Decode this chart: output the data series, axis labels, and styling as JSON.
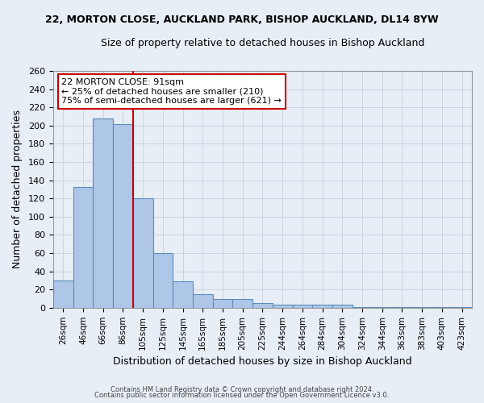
{
  "title": "22, MORTON CLOSE, AUCKLAND PARK, BISHOP AUCKLAND, DL14 8YW",
  "subtitle": "Size of property relative to detached houses in Bishop Auckland",
  "xlabel": "Distribution of detached houses by size in Bishop Auckland",
  "ylabel": "Number of detached properties",
  "bar_labels": [
    "26sqm",
    "46sqm",
    "66sqm",
    "86sqm",
    "105sqm",
    "125sqm",
    "145sqm",
    "165sqm",
    "185sqm",
    "205sqm",
    "225sqm",
    "244sqm",
    "264sqm",
    "284sqm",
    "304sqm",
    "324sqm",
    "344sqm",
    "363sqm",
    "383sqm",
    "403sqm",
    "423sqm"
  ],
  "bar_heights": [
    30,
    133,
    208,
    202,
    120,
    60,
    29,
    15,
    10,
    10,
    5,
    3,
    3,
    3,
    3,
    1,
    1,
    1,
    1,
    1,
    1
  ],
  "bar_color": "#aec6e8",
  "bar_edge_color": "#5b8db8",
  "bg_color": "#e8eef6",
  "grid_color": "#c8d0dc",
  "annotation_title": "22 MORTON CLOSE: 91sqm",
  "annotation_line1": "← 25% of detached houses are smaller (210)",
  "annotation_line2": "75% of semi-detached houses are larger (621) →",
  "annotation_box_color": "#ffffff",
  "annotation_border_color": "#cc0000",
  "red_line_index": 2.5,
  "ylim": [
    0,
    260
  ],
  "yticks": [
    0,
    20,
    40,
    60,
    80,
    100,
    120,
    140,
    160,
    180,
    200,
    220,
    240,
    260
  ],
  "footer_line1": "Contains HM Land Registry data © Crown copyright and database right 2024.",
  "footer_line2": "Contains public sector information licensed under the Open Government Licence v3.0."
}
